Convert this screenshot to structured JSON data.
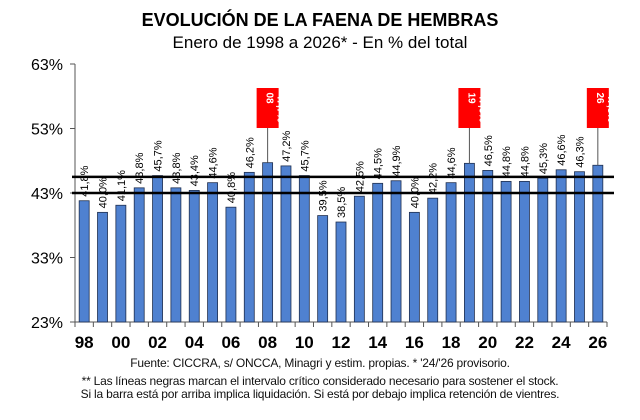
{
  "chart_data": {
    "type": "bar",
    "title": "EVOLUCIÓN DE LA FAENA DE HEMBRAS",
    "subtitle": "Enero de 1998 a 2026* - En % del total",
    "xlabel": "",
    "ylabel": "",
    "ylim": [
      23,
      63
    ],
    "y_ticks": [
      "23%",
      "33%",
      "43%",
      "53%",
      "63%"
    ],
    "y_tick_values": [
      23,
      33,
      43,
      53,
      63
    ],
    "categories": [
      "1998",
      "1999",
      "2000",
      "2001",
      "2002",
      "2003",
      "2004",
      "2005",
      "2006",
      "2007",
      "2008",
      "2009",
      "2010",
      "2011",
      "2012",
      "2013",
      "2014",
      "2015",
      "2016",
      "2017",
      "2018",
      "2019",
      "2020",
      "2021",
      "2022",
      "2023",
      "2024",
      "2025",
      "2026"
    ],
    "x_tick_labels": [
      "98",
      "00",
      "02",
      "04",
      "06",
      "08",
      "10",
      "12",
      "14",
      "16",
      "18",
      "20",
      "22",
      "24",
      "26"
    ],
    "values": [
      41.8,
      40.0,
      41.1,
      43.8,
      45.7,
      43.8,
      43.4,
      44.6,
      40.8,
      46.2,
      47.7,
      47.2,
      45.7,
      39.5,
      38.5,
      42.5,
      44.5,
      44.9,
      40.0,
      42.2,
      44.6,
      47.6,
      46.5,
      44.8,
      44.8,
      45.3,
      46.6,
      46.3,
      47.3
    ],
    "data_labels": [
      "41,8%",
      "40,0%",
      "41,1%",
      "43,8%",
      "45,7%",
      "43,8%",
      "43,4%",
      "44,6%",
      "40,8%",
      "46,2%",
      "47,7%",
      "47,2%",
      "45,7%",
      "39,5%",
      "38,5%",
      "42,5%",
      "44,5%",
      "44,9%",
      "40,0%",
      "42,2%",
      "44,6%",
      "47,6%",
      "46,5%",
      "44,8%",
      "44,8%",
      "45,3%",
      "46,6%",
      "46,3%",
      "47,3%"
    ],
    "highlights": [
      {
        "index": 10,
        "year_label": "08",
        "value_label": "47,7%"
      },
      {
        "index": 21,
        "year_label": "19",
        "value_label": "47,6%"
      },
      {
        "index": 28,
        "year_label": "26",
        "value_label": "47,3%"
      }
    ],
    "reference_lines": [
      {
        "value": 43.0,
        "label": "lower critical bound"
      },
      {
        "value": 45.5,
        "label": "upper critical bound"
      }
    ],
    "colors": {
      "bar": "#4f81d0",
      "bar_border": "#1f2f4f",
      "highlight_box": "#ff0000",
      "reference_line": "#000000"
    },
    "grid": false,
    "legend": "none",
    "source": "Fuente: CICCRA, s/ ONCCA, Minagri y estim. propias. * '24/'26  provisorio.",
    "note_line1": "** Las líneas negras marcan el intervalo crítico considerado necesario para sostener el stock.",
    "note_line2": "Si la barra está por arriba implica liquidación. Si está por debajo implica retención de vientres."
  }
}
